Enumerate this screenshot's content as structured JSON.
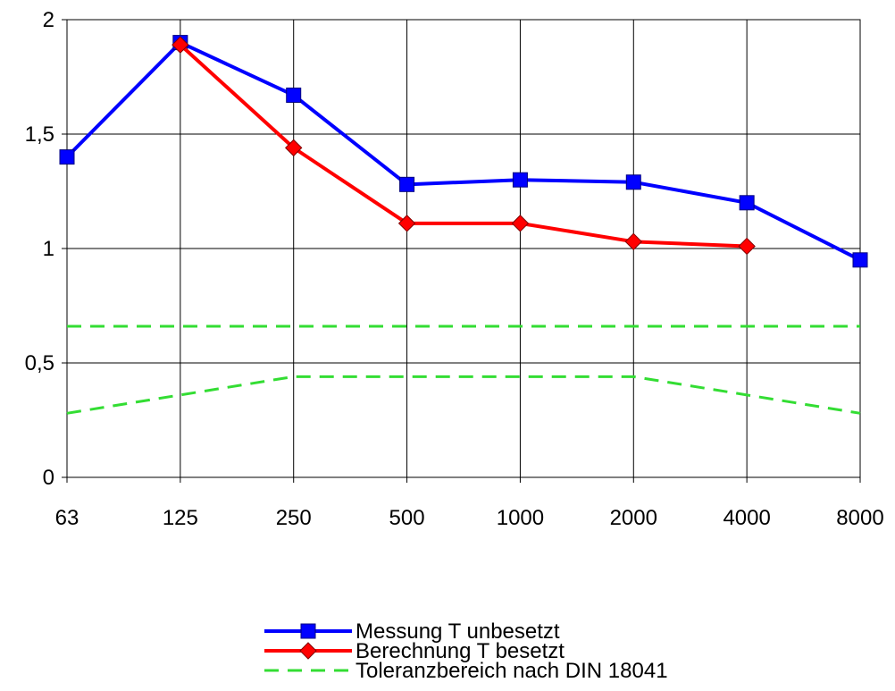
{
  "chart_data": {
    "type": "line",
    "categories": [
      "63",
      "125",
      "250",
      "500",
      "1000",
      "2000",
      "4000",
      "8000"
    ],
    "yticks": [
      "0",
      "0,5",
      "1",
      "1,5",
      "2"
    ],
    "ylim": [
      0,
      2
    ],
    "grid": true,
    "legend_position": "bottom-center",
    "series": [
      {
        "name": "Messung T unbesetzt",
        "values": [
          1.4,
          1.9,
          1.67,
          1.28,
          1.3,
          1.29,
          1.2,
          0.95
        ],
        "color": "#0000ff",
        "marker": "square",
        "style": "solid"
      },
      {
        "name": "Berechnung T besetzt",
        "values": [
          null,
          1.89,
          1.44,
          1.11,
          1.11,
          1.03,
          1.01,
          null
        ],
        "color": "#ff0000",
        "marker": "diamond",
        "style": "solid"
      },
      {
        "name": "Toleranzbereich nach DIN 18041",
        "values": [
          0.66,
          0.66,
          0.66,
          0.66,
          0.66,
          0.66,
          0.66,
          0.66
        ],
        "color": "#33dd33",
        "marker": "none",
        "style": "dashed"
      },
      {
        "name": "",
        "values": [
          0.28,
          0.36,
          0.44,
          0.44,
          0.44,
          0.44,
          0.36,
          0.28
        ],
        "color": "#33dd33",
        "marker": "none",
        "style": "dashed"
      }
    ]
  }
}
